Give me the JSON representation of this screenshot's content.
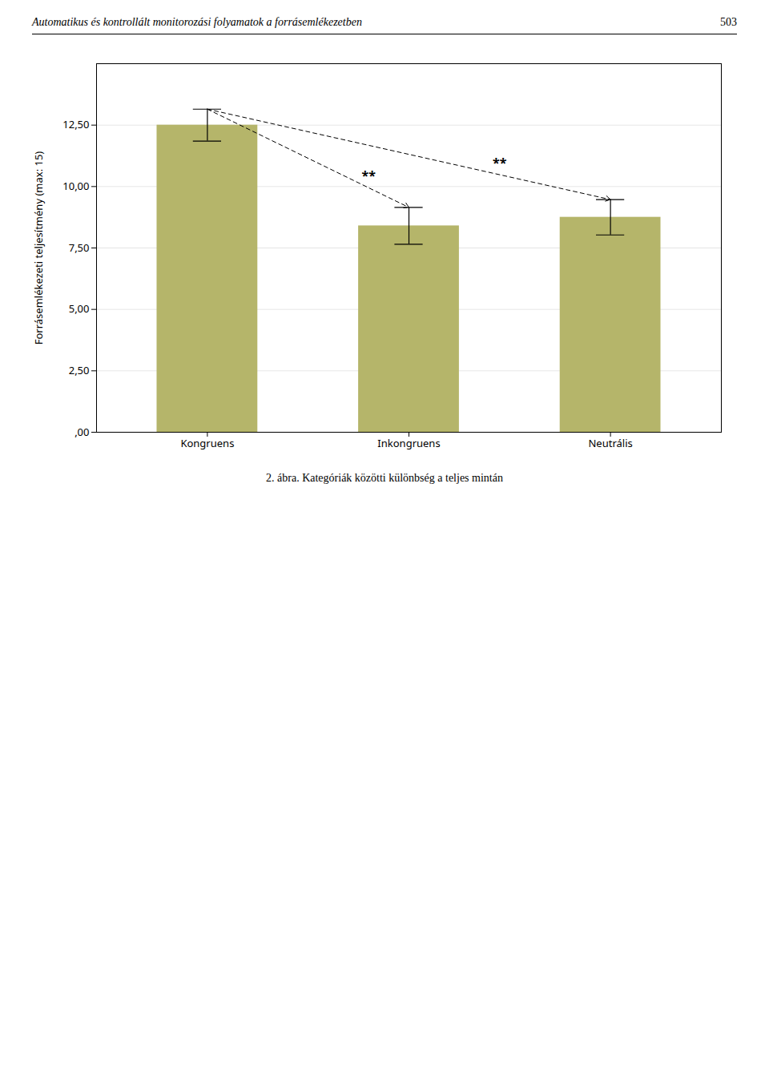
{
  "chart_data": {
    "type": "bar",
    "title": "Automatikus és kontrollált monitorozási folyamatok a forrásemlékezetben",
    "page_number": "503",
    "caption": "2. ábra. Kategóriák közötti különbség a teljes mintán",
    "categories": [
      "Kongruens",
      "Inkongruens",
      "Neutrális"
    ],
    "values": [
      12.5,
      8.4,
      8.75
    ],
    "errors": [
      0.65,
      0.75,
      0.72
    ],
    "color": "#b5b56a",
    "ylabel": "Forrásemlékezeti teljesítmény (max: 15)",
    "ylim": [
      0,
      15.0
    ],
    "yticks": [
      {
        "value": 0.0,
        "label": ",00"
      },
      {
        "value": 2.5,
        "label": "2,50"
      },
      {
        "value": 5.0,
        "label": "5,00"
      },
      {
        "value": 7.5,
        "label": "7,50"
      },
      {
        "value": 10.0,
        "label": "10,00"
      },
      {
        "value": 12.5,
        "label": "12,50"
      }
    ],
    "grid": true,
    "annotations": [
      {
        "text": "**",
        "from": "Kongruens",
        "to": "Inkongruens"
      },
      {
        "text": "**",
        "from": "Kongruens",
        "to": "Neutrális"
      }
    ]
  }
}
